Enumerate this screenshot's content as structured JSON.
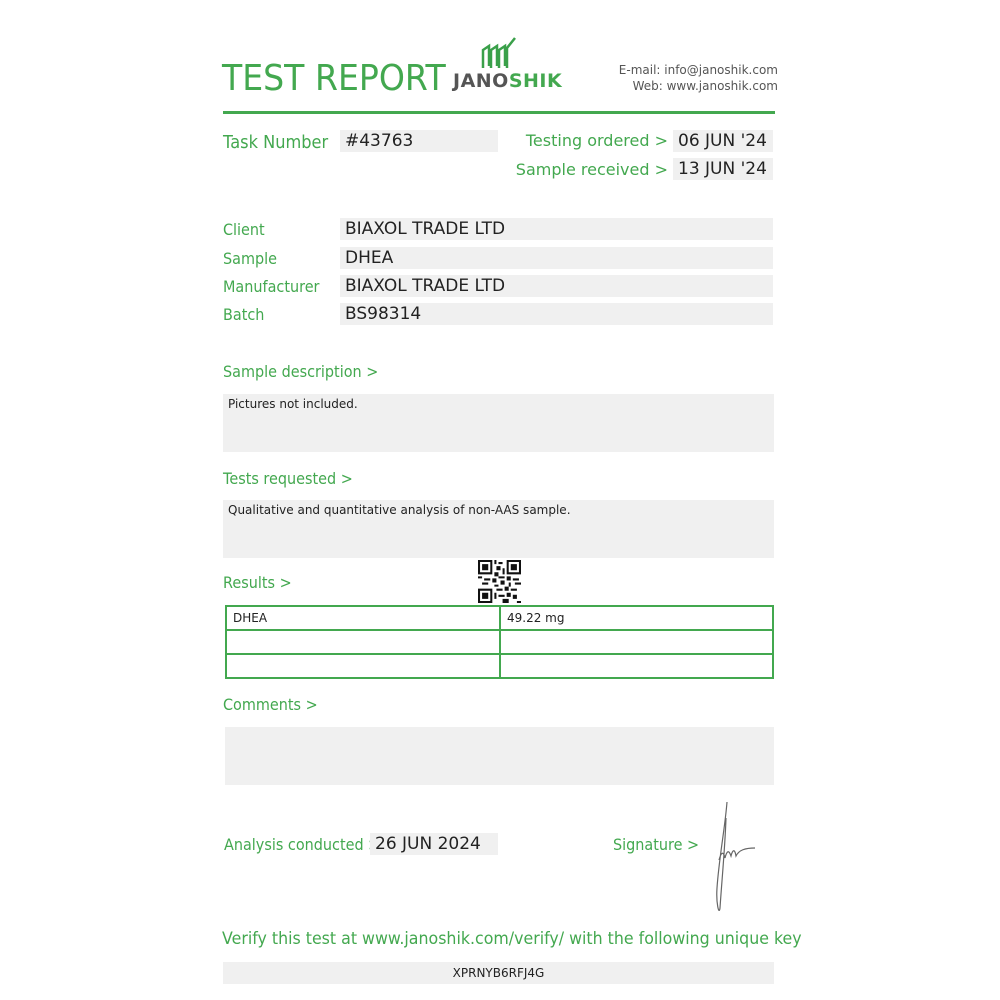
{
  "header": {
    "title": "TEST REPORT",
    "logo_text": "JANOSHIK",
    "email": "E-mail: info@janoshik.com",
    "web": "Web: www.janoshik.com"
  },
  "task": {
    "label": "Task Number",
    "value": "#43763"
  },
  "dates": {
    "ordered_label": "Testing ordered  >",
    "ordered_value": "06 JUN '24",
    "received_label": "Sample received >",
    "received_value": "13 JUN '24"
  },
  "fields": [
    {
      "label": "Client",
      "value": "BIAXOL TRADE LTD"
    },
    {
      "label": "Sample",
      "value": "DHEA"
    },
    {
      "label": "Manufacturer",
      "value": "BIAXOL TRADE LTD"
    },
    {
      "label": "Batch",
      "value": "BS98314"
    }
  ],
  "sample_description": {
    "label": "Sample description >",
    "value": "Pictures not included."
  },
  "tests_requested": {
    "label": "Tests requested >",
    "value": "Qualitative and quantitative analysis of non-AAS sample."
  },
  "results": {
    "label": "Results >",
    "rows": [
      [
        "DHEA",
        "49.22 mg"
      ],
      [
        "",
        ""
      ],
      [
        "",
        ""
      ]
    ]
  },
  "comments": {
    "label": "Comments >",
    "value": ""
  },
  "analysis": {
    "label": "Analysis conducted >",
    "value": "26 JUN 2024"
  },
  "signature": {
    "label": "Signature >"
  },
  "verify": {
    "text": "Verify this test at www.janoshik.com/verify/ with the following unique key",
    "key": "XPRNYB6RFJ4G"
  },
  "colors": {
    "accent": "#43a84f",
    "box": "#f0f0f0"
  }
}
